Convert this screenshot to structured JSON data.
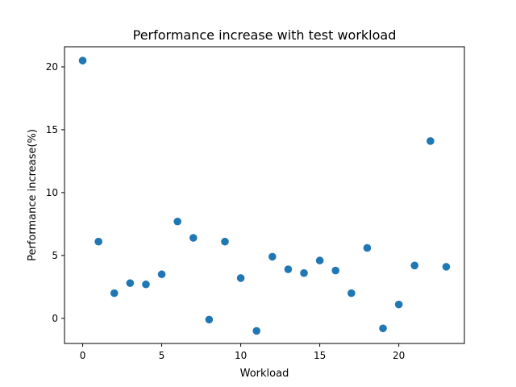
{
  "chart_data": {
    "type": "scatter",
    "title": "Performance increase with test workload",
    "xlabel": "Workload",
    "ylabel": "Performance increase(%)",
    "xlim": [
      -1.15,
      24.15
    ],
    "ylim": [
      -2.0,
      21.6
    ],
    "xticks": [
      0,
      5,
      10,
      15,
      20
    ],
    "yticks": [
      0,
      5,
      10,
      15,
      20
    ],
    "grid": false,
    "marker_color": "#1f77b4",
    "series": [
      {
        "x": [
          0,
          1,
          2,
          3,
          4,
          5,
          6,
          7,
          8,
          9,
          10,
          11,
          12,
          13,
          14,
          15,
          16,
          17,
          18,
          19,
          20,
          21,
          22,
          23
        ],
        "y": [
          20.5,
          6.1,
          2.0,
          2.8,
          2.7,
          3.5,
          7.7,
          6.4,
          -0.1,
          6.1,
          3.2,
          -1.0,
          4.9,
          3.9,
          3.6,
          4.6,
          3.8,
          2.0,
          5.6,
          -0.8,
          1.1,
          4.2,
          14.1,
          4.1
        ]
      }
    ]
  }
}
